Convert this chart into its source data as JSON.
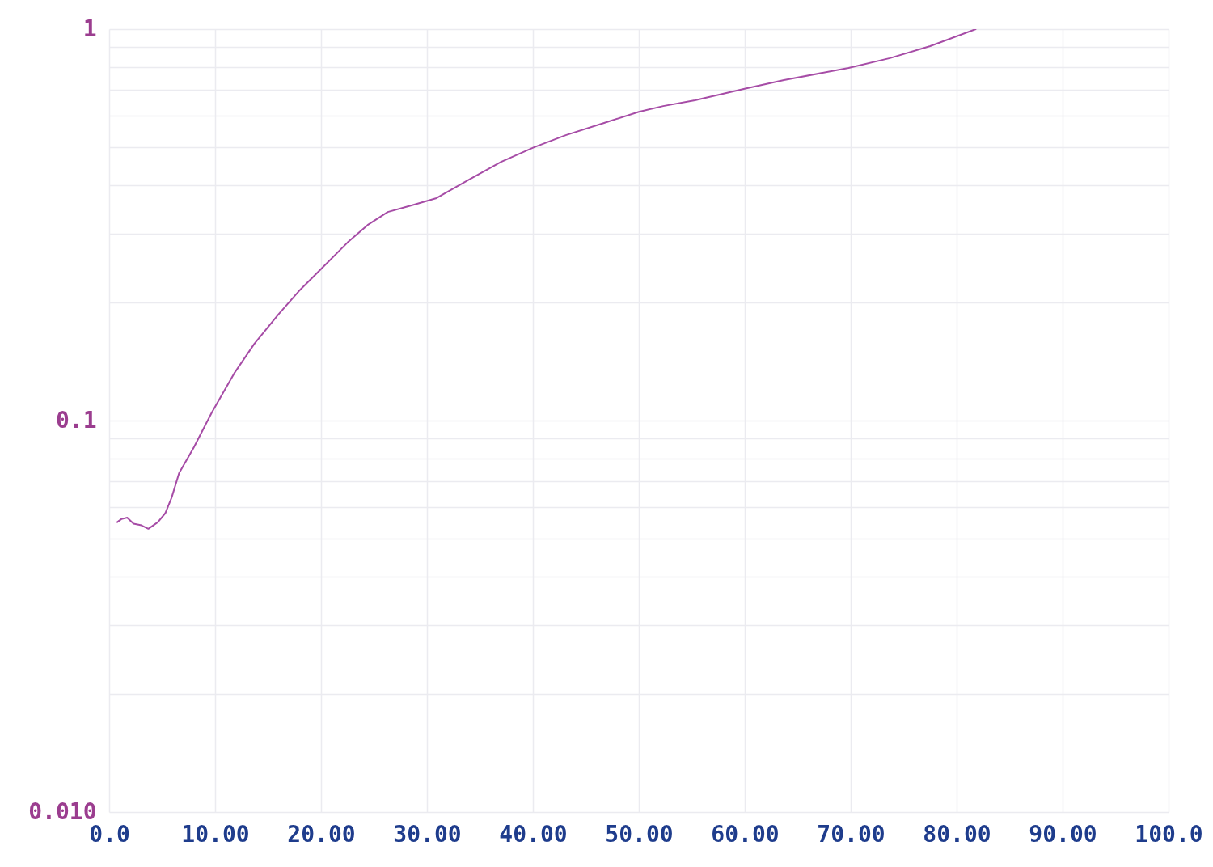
{
  "chart_data": {
    "type": "line",
    "x": [
      0.76,
      1.15,
      1.7,
      2.3,
      3.05,
      3.7,
      4.6,
      5.3,
      5.9,
      6.6,
      8.0,
      9.7,
      11.8,
      13.7,
      16.0,
      17.9,
      20.2,
      22.5,
      24.4,
      26.3,
      28.6,
      30.9,
      34.0,
      37.0,
      40.1,
      43.1,
      46.9,
      50.0,
      52.3,
      55.3,
      59.9,
      63.7,
      69.8,
      73.7,
      77.5,
      81.8
    ],
    "series": [
      {
        "color": "#a64ca6",
        "values": [
          0.055,
          0.056,
          0.0565,
          0.0545,
          0.054,
          0.0529,
          0.055,
          0.058,
          0.0636,
          0.0734,
          0.0855,
          0.105,
          0.132,
          0.157,
          0.187,
          0.214,
          0.247,
          0.285,
          0.316,
          0.341,
          0.355,
          0.37,
          0.413,
          0.458,
          0.499,
          0.536,
          0.578,
          0.615,
          0.636,
          0.658,
          0.703,
          0.741,
          0.796,
          0.843,
          0.905,
          1.0
        ]
      }
    ],
    "xlim": [
      0,
      100
    ],
    "xticks": [
      {
        "value": 0,
        "label": "0.0"
      },
      {
        "value": 10,
        "label": "10.00"
      },
      {
        "value": 20,
        "label": "20.00"
      },
      {
        "value": 30,
        "label": "30.00"
      },
      {
        "value": 40,
        "label": "40.00"
      },
      {
        "value": 50,
        "label": "50.00"
      },
      {
        "value": 60,
        "label": "60.00"
      },
      {
        "value": 70,
        "label": "70.00"
      },
      {
        "value": 80,
        "label": "80.00"
      },
      {
        "value": 90,
        "label": "90.00"
      },
      {
        "value": 100,
        "label": "100.0"
      }
    ],
    "ylim": [
      0.01,
      1
    ],
    "yticks": [
      {
        "value": 0.01,
        "label": "0.010"
      },
      {
        "value": 0.02,
        "label": null
      },
      {
        "value": 0.03,
        "label": null
      },
      {
        "value": 0.04,
        "label": null
      },
      {
        "value": 0.05,
        "label": null
      },
      {
        "value": 0.06,
        "label": null
      },
      {
        "value": 0.07,
        "label": null
      },
      {
        "value": 0.08,
        "label": null
      },
      {
        "value": 0.09,
        "label": null
      },
      0.1,
      {
        "value": 0.2,
        "label": null
      },
      {
        "value": 0.3,
        "label": null
      },
      {
        "value": 0.4,
        "label": null
      },
      {
        "value": 0.5,
        "label": null
      },
      {
        "value": 0.6,
        "label": null
      },
      {
        "value": 0.7,
        "label": null
      },
      {
        "value": 0.8,
        "label": null
      },
      {
        "value": 0.9,
        "label": null
      },
      1
    ],
    "log": "y",
    "grid": true,
    "marker": "none",
    "line_style": "solid"
  }
}
